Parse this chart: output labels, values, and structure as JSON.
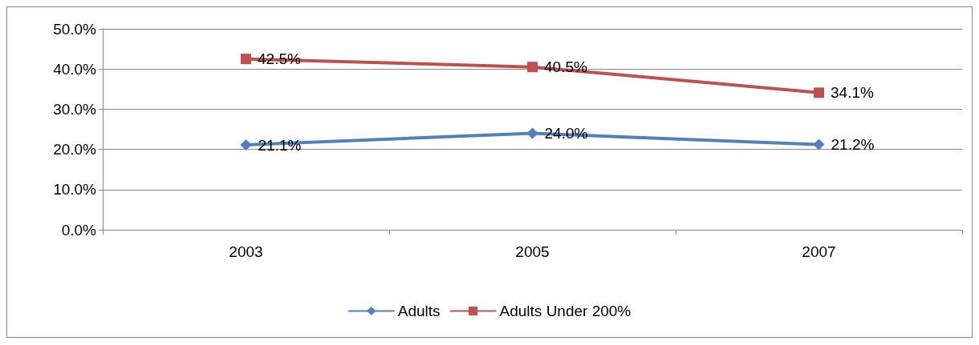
{
  "chart_data": {
    "type": "line",
    "categories": [
      "2003",
      "2005",
      "2007"
    ],
    "series": [
      {
        "name": "Adults",
        "color": "#4f81bd",
        "marker": "diamond",
        "values": [
          21.1,
          24.0,
          21.2
        ],
        "value_labels": [
          "21.1%",
          "24.0%",
          "21.2%"
        ]
      },
      {
        "name": "Adults Under 200%",
        "color": "#c0504d",
        "marker": "square",
        "values": [
          42.5,
          40.5,
          34.1
        ],
        "value_labels": [
          "42.5%",
          "40.5%",
          "34.1%"
        ]
      }
    ],
    "ylim": [
      0,
      50
    ],
    "yticks": [
      {
        "value": 0,
        "label": "0.0%"
      },
      {
        "value": 10,
        "label": "10.0%"
      },
      {
        "value": 20,
        "label": "20.0%"
      },
      {
        "value": 30,
        "label": "30.0%"
      },
      {
        "value": 40,
        "label": "40.0%"
      },
      {
        "value": 50,
        "label": "50.0%"
      }
    ],
    "grid": "y",
    "legend": "bottom"
  }
}
